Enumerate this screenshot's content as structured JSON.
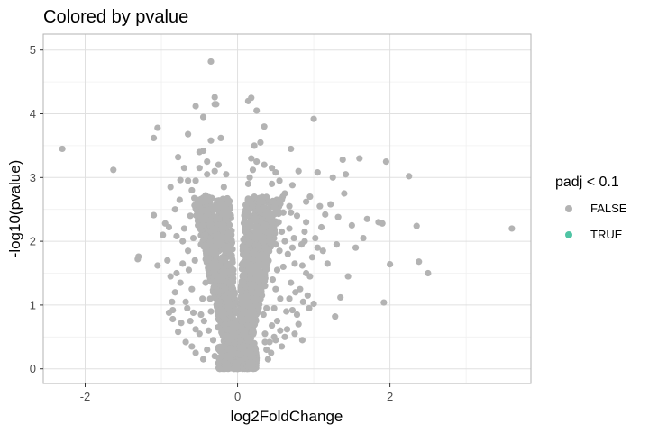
{
  "chart_data": {
    "type": "scatter",
    "title": "Colored by pvalue",
    "xlabel": "log2FoldChange",
    "ylabel": "-log10(pvalue)",
    "xlim": [
      -2.55,
      3.85
    ],
    "ylim": [
      -0.23,
      5.25
    ],
    "x_ticks": [
      {
        "value": -2,
        "label": "-2"
      },
      {
        "value": 0,
        "label": "0"
      },
      {
        "value": 2,
        "label": "2"
      }
    ],
    "y_ticks": [
      {
        "value": 0,
        "label": "0"
      },
      {
        "value": 1,
        "label": "1"
      },
      {
        "value": 2,
        "label": "2"
      },
      {
        "value": 3,
        "label": "3"
      },
      {
        "value": 4,
        "label": "4"
      },
      {
        "value": 5,
        "label": "5"
      }
    ],
    "grid": true,
    "legend": {
      "title": "padj < 0.1",
      "placement": "right",
      "entries": [
        {
          "label": "FALSE",
          "color": "#b3b3b3"
        },
        {
          "label": "TRUE",
          "color": "#4fc4a4"
        }
      ]
    },
    "series": [
      {
        "name": "FALSE",
        "color": "#b3b3b3",
        "points": [
          [
            -2.3,
            3.45
          ],
          [
            -1.63,
            3.12
          ],
          [
            -1.3,
            1.76
          ],
          [
            -1.31,
            1.72
          ],
          [
            -1.05,
            3.78
          ],
          [
            -1.1,
            3.62
          ],
          [
            -1.1,
            2.41
          ],
          [
            -1.05,
            1.62
          ],
          [
            -0.95,
            2.28
          ],
          [
            -0.9,
            2.22
          ],
          [
            -0.88,
            1.45
          ],
          [
            -0.85,
            0.78
          ],
          [
            -0.85,
            0.92
          ],
          [
            -0.9,
            0.88
          ],
          [
            -0.82,
            1.2
          ],
          [
            -0.8,
            2.08
          ],
          [
            -0.78,
            3.32
          ],
          [
            -0.75,
            2.96
          ],
          [
            -0.7,
            3.15
          ],
          [
            -0.65,
            3.68
          ],
          [
            -0.55,
            4.12
          ],
          [
            -0.45,
            3.95
          ],
          [
            -0.35,
            4.82
          ],
          [
            -0.3,
            4.26
          ],
          [
            -0.28,
            4.15
          ],
          [
            -0.22,
            3.62
          ],
          [
            -0.35,
            3.58
          ],
          [
            -0.45,
            3.42
          ],
          [
            -0.4,
            3.25
          ],
          [
            -0.25,
            3.2
          ],
          [
            -0.3,
            3.1
          ],
          [
            -0.5,
            3.15
          ],
          [
            -0.55,
            2.95
          ],
          [
            -0.6,
            2.8
          ],
          [
            -0.42,
            2.72
          ],
          [
            -0.5,
            2.55
          ],
          [
            -0.62,
            2.4
          ],
          [
            -0.7,
            2.2
          ],
          [
            -0.58,
            2.05
          ],
          [
            -0.65,
            1.85
          ],
          [
            -0.72,
            1.65
          ],
          [
            -0.75,
            1.35
          ],
          [
            -0.68,
            1.05
          ],
          [
            -0.62,
            0.75
          ],
          [
            -0.78,
            0.58
          ],
          [
            -0.68,
            0.42
          ],
          [
            -0.6,
            0.35
          ],
          [
            -0.55,
            0.25
          ],
          [
            -0.5,
            0.55
          ],
          [
            -0.45,
            0.15
          ],
          [
            -0.4,
            0.3
          ],
          [
            -0.38,
            0.6
          ],
          [
            -0.35,
            0.9
          ],
          [
            -0.32,
            1.2
          ],
          [
            -0.3,
            1.5
          ],
          [
            -0.28,
            1.8
          ],
          [
            -0.26,
            2.1
          ],
          [
            -0.24,
            2.35
          ],
          [
            -0.2,
            2.6
          ],
          [
            -0.18,
            2.85
          ],
          [
            -0.15,
            3.05
          ],
          [
            -0.12,
            2.5
          ],
          [
            -0.1,
            1.9
          ],
          [
            -0.08,
            1.3
          ],
          [
            -0.06,
            0.8
          ],
          [
            -0.04,
            0.4
          ],
          [
            -0.02,
            0.1
          ],
          [
            0.0,
            0.02
          ],
          [
            0.02,
            0.12
          ],
          [
            0.04,
            0.45
          ],
          [
            0.06,
            0.85
          ],
          [
            0.08,
            1.35
          ],
          [
            0.1,
            1.9
          ],
          [
            0.12,
            2.45
          ],
          [
            0.14,
            2.9
          ],
          [
            0.16,
            3.0
          ],
          [
            0.18,
            3.3
          ],
          [
            0.2,
            3.12
          ],
          [
            0.22,
            2.7
          ],
          [
            0.24,
            2.35
          ],
          [
            0.26,
            2.05
          ],
          [
            0.28,
            1.75
          ],
          [
            0.3,
            1.45
          ],
          [
            0.32,
            1.15
          ],
          [
            0.34,
            0.85
          ],
          [
            0.36,
            0.55
          ],
          [
            0.38,
            0.3
          ],
          [
            0.4,
            0.15
          ],
          [
            0.42,
            0.42
          ],
          [
            0.45,
            0.68
          ],
          [
            0.48,
            0.95
          ],
          [
            0.5,
            1.25
          ],
          [
            0.52,
            1.55
          ],
          [
            0.55,
            1.85
          ],
          [
            0.58,
            2.15
          ],
          [
            0.6,
            2.45
          ],
          [
            0.62,
            2.75
          ],
          [
            0.55,
            2.95
          ],
          [
            0.5,
            3.08
          ],
          [
            0.45,
            3.15
          ],
          [
            0.35,
            3.2
          ],
          [
            0.3,
            3.55
          ],
          [
            0.35,
            3.8
          ],
          [
            0.25,
            4.05
          ],
          [
            0.18,
            4.25
          ],
          [
            0.14,
            4.2
          ],
          [
            0.7,
            3.45
          ],
          [
            0.72,
            2.88
          ],
          [
            0.7,
            2.45
          ],
          [
            0.68,
            2.2
          ],
          [
            0.72,
            1.9
          ],
          [
            0.75,
            1.65
          ],
          [
            0.7,
            1.35
          ],
          [
            0.68,
            1.1
          ],
          [
            0.72,
            0.92
          ],
          [
            0.65,
            0.62
          ],
          [
            0.62,
            0.5
          ],
          [
            0.75,
            0.55
          ],
          [
            0.78,
            0.85
          ],
          [
            0.82,
            1.25
          ],
          [
            0.85,
            1.62
          ],
          [
            0.88,
            2.0
          ],
          [
            0.9,
            2.3
          ],
          [
            0.95,
            1.45
          ],
          [
            1.0,
            3.92
          ],
          [
            1.05,
            3.08
          ],
          [
            1.02,
            2.05
          ],
          [
            1.05,
            1.9
          ],
          [
            1.0,
            1.02
          ],
          [
            1.08,
            2.55
          ],
          [
            1.12,
            1.85
          ],
          [
            1.18,
            1.65
          ],
          [
            1.22,
            2.58
          ],
          [
            1.25,
            3.0
          ],
          [
            1.28,
            0.82
          ],
          [
            1.3,
            1.95
          ],
          [
            1.32,
            2.38
          ],
          [
            1.35,
            1.12
          ],
          [
            1.38,
            3.28
          ],
          [
            1.4,
            2.75
          ],
          [
            1.42,
            3.05
          ],
          [
            1.45,
            1.45
          ],
          [
            1.5,
            2.25
          ],
          [
            1.55,
            1.9
          ],
          [
            1.6,
            3.3
          ],
          [
            1.65,
            2.05
          ],
          [
            1.7,
            2.35
          ],
          [
            1.85,
            2.3
          ],
          [
            1.9,
            2.28
          ],
          [
            1.92,
            1.04
          ],
          [
            1.95,
            3.25
          ],
          [
            2.0,
            1.64
          ],
          [
            2.25,
            3.02
          ],
          [
            2.35,
            2.24
          ],
          [
            2.38,
            1.68
          ],
          [
            2.5,
            1.5
          ],
          [
            3.6,
            2.2
          ],
          [
            1.15,
            2.42
          ],
          [
            0.95,
            2.7
          ],
          [
            0.8,
            3.1
          ],
          [
            0.9,
            2.62
          ],
          [
            0.85,
            0.45
          ],
          [
            0.92,
            1.15
          ],
          [
            0.98,
            1.75
          ],
          [
            1.1,
            2.22
          ],
          [
            -0.98,
            2.1
          ],
          [
            -0.92,
            1.7
          ],
          [
            -0.88,
            2.85
          ],
          [
            -0.82,
            2.5
          ],
          [
            -0.86,
            1.05
          ],
          [
            -0.8,
            1.5
          ],
          [
            -0.76,
            2.65
          ],
          [
            -0.74,
            0.72
          ],
          [
            -0.72,
            2.0
          ],
          [
            -0.66,
            0.95
          ],
          [
            -0.64,
            1.55
          ],
          [
            -0.6,
            1.25
          ],
          [
            -0.58,
            0.88
          ],
          [
            -0.56,
            1.7
          ],
          [
            -0.52,
            2.25
          ],
          [
            -0.48,
            1.95
          ],
          [
            -0.46,
            1.1
          ],
          [
            -0.44,
            0.75
          ],
          [
            -0.42,
            2.1
          ],
          [
            -0.38,
            2.42
          ],
          [
            -0.36,
            2.0
          ],
          [
            -0.34,
            1.65
          ],
          [
            -0.32,
            0.45
          ],
          [
            -0.3,
            0.2
          ],
          [
            -0.28,
            2.55
          ],
          [
            -0.26,
            0.65
          ],
          [
            -0.24,
            1.05
          ],
          [
            -0.22,
            1.4
          ],
          [
            -0.2,
            1.75
          ],
          [
            -0.18,
            0.35
          ],
          [
            -0.16,
            0.7
          ],
          [
            -0.14,
            1.1
          ],
          [
            -0.12,
            1.5
          ],
          [
            -0.1,
            0.5
          ],
          [
            -0.08,
            0.25
          ],
          [
            0.08,
            0.28
          ],
          [
            0.1,
            0.6
          ],
          [
            0.12,
            1.05
          ],
          [
            0.14,
            1.55
          ],
          [
            0.16,
            2.1
          ],
          [
            0.18,
            1.25
          ],
          [
            0.2,
            0.75
          ],
          [
            0.22,
            0.4
          ],
          [
            0.24,
            1.0
          ],
          [
            0.26,
            1.4
          ],
          [
            0.28,
            2.6
          ],
          [
            0.3,
            2.2
          ],
          [
            0.32,
            1.8
          ],
          [
            0.34,
            2.5
          ],
          [
            0.36,
            1.3
          ],
          [
            0.38,
            0.95
          ],
          [
            0.4,
            1.7
          ],
          [
            0.42,
            2.05
          ],
          [
            0.44,
            2.4
          ],
          [
            0.46,
            1.4
          ],
          [
            0.48,
            0.5
          ],
          [
            0.5,
            1.95
          ],
          [
            0.52,
            0.75
          ],
          [
            0.54,
            2.3
          ],
          [
            0.56,
            1.1
          ],
          [
            0.58,
            0.35
          ],
          [
            0.6,
            1.6
          ],
          [
            0.62,
            2.0
          ],
          [
            0.64,
            0.9
          ],
          [
            0.66,
            1.8
          ],
          [
            0.68,
            2.55
          ],
          [
            0.74,
            2.05
          ],
          [
            0.76,
            1.2
          ],
          [
            0.78,
            2.4
          ],
          [
            0.8,
            0.7
          ],
          [
            0.84,
            1.95
          ],
          [
            0.86,
            1.05
          ],
          [
            0.88,
            2.15
          ],
          [
            0.9,
            1.5
          ],
          [
            0.94,
            0.95
          ],
          [
            -0.3,
            4.15
          ],
          [
            -0.65,
            2.95
          ],
          [
            -0.5,
            3.4
          ],
          [
            -0.4,
            3.05
          ],
          [
            0.22,
            3.5
          ],
          [
            0.25,
            3.25
          ],
          [
            0.45,
            2.9
          ],
          [
            0.55,
            2.65
          ],
          [
            -0.55,
            0.62
          ],
          [
            -0.48,
            0.85
          ],
          [
            -0.42,
            1.35
          ],
          [
            -0.36,
            1.1
          ],
          [
            0.36,
            0.42
          ],
          [
            0.44,
            0.25
          ],
          [
            0.5,
            0.45
          ],
          [
            0.56,
            0.6
          ]
        ]
      }
    ]
  }
}
